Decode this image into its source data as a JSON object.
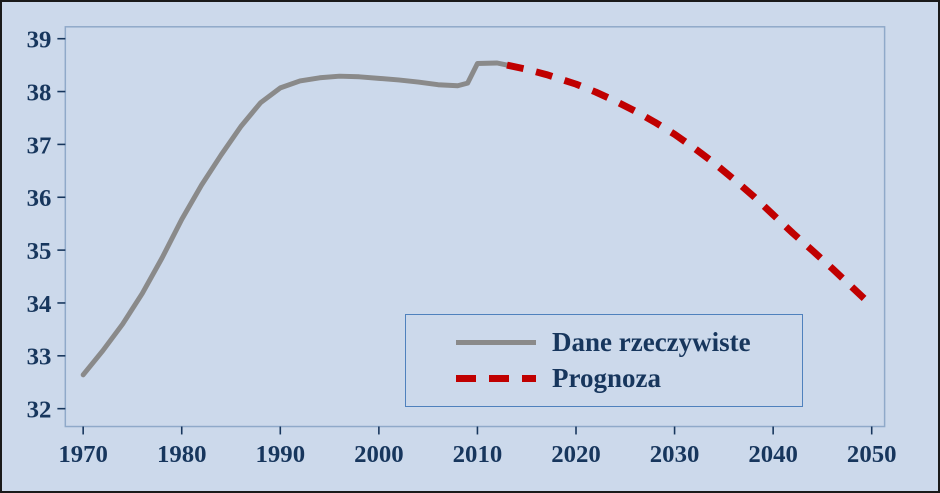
{
  "colors": {
    "background": "#ccd9eb",
    "outer_border": "#1a1a1a",
    "plot_border": "#8fa9c9",
    "legend_border": "#4f81bd",
    "axis_text": "#17365d",
    "actual_line": "#8a8a8a",
    "forecast_line": "#c00000"
  },
  "chart_data": {
    "type": "line",
    "title": "",
    "xlabel": "",
    "ylabel": "",
    "xlim": [
      1970,
      2050
    ],
    "ylim": [
      32,
      39
    ],
    "xticks": [
      1970,
      1980,
      1990,
      2000,
      2010,
      2020,
      2030,
      2040,
      2050
    ],
    "yticks": [
      32,
      33,
      34,
      35,
      36,
      37,
      38,
      39
    ],
    "grid": false,
    "legend_position": "inside-bottom-right",
    "series": [
      {
        "name": "Dane rzeczywiste",
        "style": "solid",
        "color": "#8a8a8a",
        "x": [
          1970,
          1972,
          1974,
          1976,
          1978,
          1980,
          1982,
          1984,
          1986,
          1988,
          1990,
          1992,
          1994,
          1996,
          1998,
          2000,
          2002,
          2004,
          2006,
          2008,
          2009,
          2010,
          2012,
          2013
        ],
        "y": [
          32.64,
          33.1,
          33.6,
          34.18,
          34.85,
          35.58,
          36.23,
          36.8,
          37.34,
          37.79,
          38.07,
          38.2,
          38.26,
          38.29,
          38.28,
          38.25,
          38.22,
          38.18,
          38.13,
          38.11,
          38.16,
          38.53,
          38.54,
          38.5
        ]
      },
      {
        "name": "Prognoza",
        "style": "dashed",
        "color": "#c00000",
        "x": [
          2013,
          2015,
          2017,
          2019,
          2020,
          2022,
          2024,
          2026,
          2028,
          2030,
          2032,
          2034,
          2036,
          2038,
          2040,
          2042,
          2044,
          2046,
          2048,
          2050
        ],
        "y": [
          38.5,
          38.42,
          38.32,
          38.2,
          38.14,
          37.99,
          37.82,
          37.63,
          37.42,
          37.19,
          36.93,
          36.65,
          36.34,
          36.02,
          35.67,
          35.32,
          34.99,
          34.65,
          34.3,
          33.95
        ]
      }
    ]
  }
}
